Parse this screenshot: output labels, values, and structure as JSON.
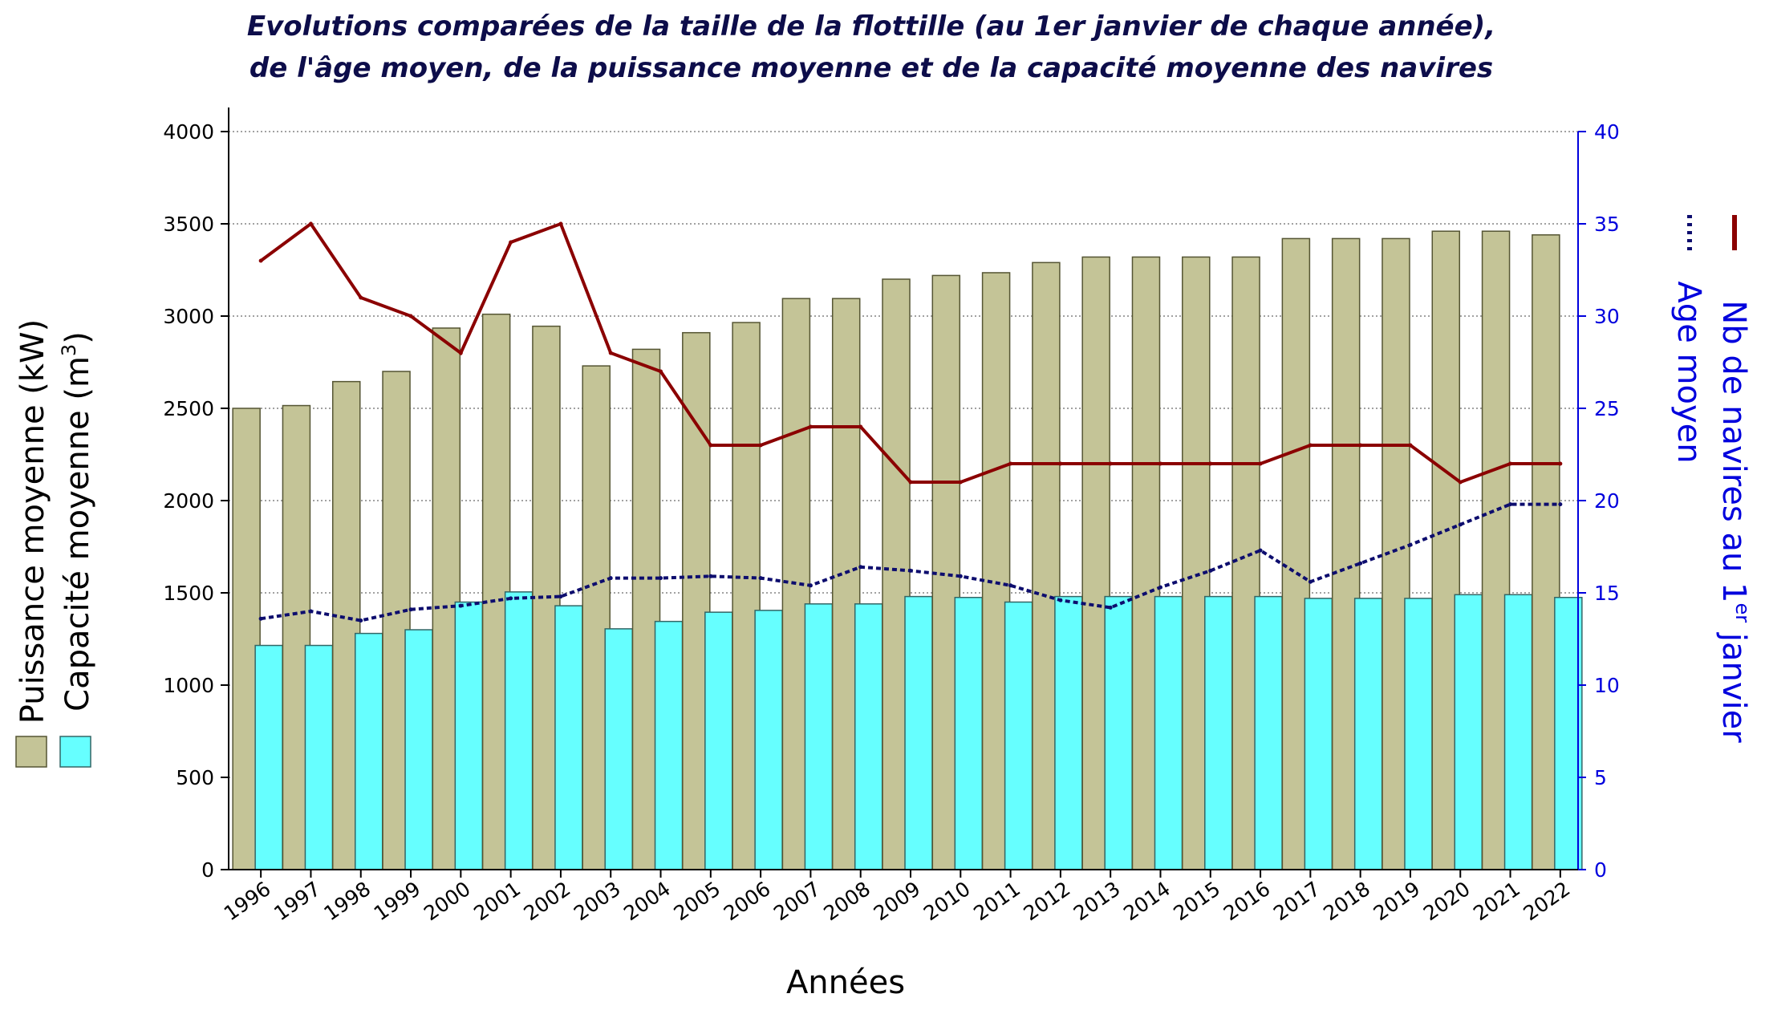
{
  "chart_data": {
    "type": "bar",
    "title_line1": "Evolutions comparées de la taille de la flottille (au 1er janvier de chaque année),",
    "title_line2": "de l'âge moyen, de la puissance moyenne et de la capacité moyenne des navires",
    "xlabel": "Années",
    "ylabel_left_1": "Puissance moyenne (kW)",
    "ylabel_left_2_prefix": "Capacité moyenne (m",
    "ylabel_left_2_sup": "3",
    "ylabel_left_2_suffix": ")",
    "ylabel_right_1_prefix": "Nb de navires au 1",
    "ylabel_right_1_sup": "er",
    "ylabel_right_1_suffix": " janvier",
    "ylabel_right_2": "Age moyen",
    "ylim_left": [
      0,
      4000
    ],
    "yticks_left": [
      0,
      500,
      1000,
      1500,
      2000,
      2500,
      3000,
      3500,
      4000
    ],
    "ylim_right": [
      0,
      40
    ],
    "yticks_right": [
      0,
      5,
      10,
      15,
      20,
      25,
      30,
      35,
      40
    ],
    "grid": true,
    "categories": [
      "1996",
      "1997",
      "1998",
      "1999",
      "2000",
      "2001",
      "2002",
      "2003",
      "2004",
      "2005",
      "2006",
      "2007",
      "2008",
      "2009",
      "2010",
      "2011",
      "2012",
      "2013",
      "2014",
      "2015",
      "2016",
      "2017",
      "2018",
      "2019",
      "2020",
      "2021",
      "2022"
    ],
    "series": [
      {
        "name": "Puissance moyenne (kW)",
        "type": "bar",
        "axis": "left",
        "color": "#c4c497",
        "values": [
          2500,
          2515,
          2645,
          2700,
          2935,
          3010,
          2945,
          2730,
          2820,
          2910,
          2965,
          3095,
          3095,
          3200,
          3220,
          3235,
          3290,
          3320,
          3320,
          3320,
          3320,
          3420,
          3420,
          3420,
          3460,
          3460,
          3440
        ]
      },
      {
        "name": "Capacité moyenne (m3)",
        "type": "bar",
        "axis": "left",
        "color": "#66ffff",
        "values": [
          1215,
          1215,
          1280,
          1300,
          1450,
          1505,
          1430,
          1305,
          1345,
          1395,
          1405,
          1440,
          1440,
          1480,
          1475,
          1450,
          1480,
          1480,
          1480,
          1480,
          1480,
          1470,
          1470,
          1470,
          1490,
          1490,
          1475
        ]
      },
      {
        "name": "Nb de navires au 1er janvier",
        "type": "line",
        "axis": "right",
        "color": "#8b0000",
        "values": [
          33,
          35,
          31,
          30,
          28,
          34,
          35,
          28,
          27,
          23,
          23,
          24,
          24,
          21,
          21,
          22,
          22,
          22,
          22,
          22,
          22,
          23,
          23,
          23,
          21,
          22,
          22
        ]
      },
      {
        "name": "Age moyen",
        "type": "line",
        "axis": "right",
        "color": "#0d0d6e",
        "values": [
          13.6,
          14.0,
          13.5,
          14.1,
          14.3,
          14.7,
          14.8,
          15.8,
          15.8,
          15.9,
          15.8,
          15.4,
          16.4,
          16.2,
          15.9,
          15.4,
          14.6,
          14.2,
          15.3,
          16.2,
          17.3,
          15.6,
          16.6,
          17.6,
          18.7,
          19.8,
          19.8
        ]
      }
    ]
  }
}
